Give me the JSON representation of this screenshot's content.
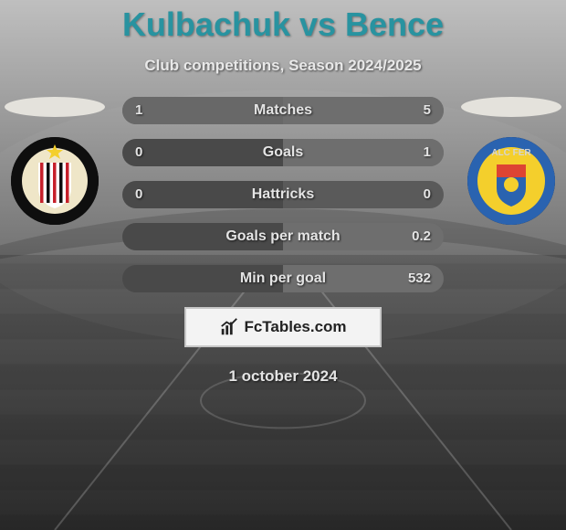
{
  "title": "Kulbachuk vs Bence",
  "title_color": "#2893a0",
  "subtitle": "Club competitions, Season 2024/2025",
  "text_color": "#e4e4e4",
  "date": "1 october 2024",
  "branding_text": "FcTables.com",
  "background": {
    "sky_top": "#bfbfbf",
    "sky_bottom": "#6f6f6f",
    "grass_top": "#5a5a5a",
    "grass_bottom": "#2a2a2a",
    "horizon_pct": 48
  },
  "left_player": {
    "photo_bg": "#e4e2dc",
    "club_outer": "#0e0e0e",
    "club_inner": "#efe6c8",
    "club_star": "#f4cf2c",
    "club_stripes": [
      "#c6202a",
      "#0e0e0e"
    ]
  },
  "right_player": {
    "photo_bg": "#e4e2dc",
    "club_outer": "#2a63b0",
    "club_inner": "#f4cf2c",
    "club_text": "ALC FER",
    "club_text_color": "#d4d4d4"
  },
  "bars": {
    "bg_left": "#494949",
    "bg_right": "#5a5a5a",
    "fill_color": "#7a7a7a",
    "height": 30,
    "radius": 15
  },
  "stats": [
    {
      "label": "Matches",
      "left_val": "1",
      "right_val": "5",
      "left_pct": 100,
      "right_pct": 100
    },
    {
      "label": "Goals",
      "left_val": "0",
      "right_val": "1",
      "left_pct": 0,
      "right_pct": 100
    },
    {
      "label": "Hattricks",
      "left_val": "0",
      "right_val": "0",
      "left_pct": 0,
      "right_pct": 0
    },
    {
      "label": "Goals per match",
      "left_val": "",
      "right_val": "0.2",
      "left_pct": 0,
      "right_pct": 100
    },
    {
      "label": "Min per goal",
      "left_val": "",
      "right_val": "532",
      "left_pct": 0,
      "right_pct": 100
    }
  ]
}
